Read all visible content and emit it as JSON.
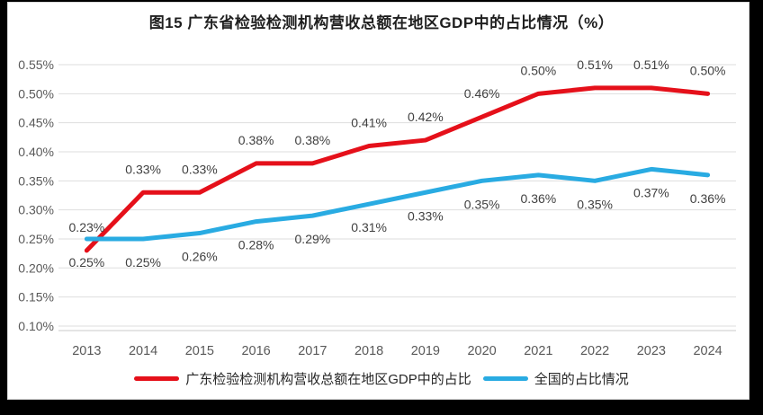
{
  "chart_data": {
    "type": "line",
    "title": "图15  广东省检验检测机构营收总额在地区GDP中的占比情况（%）",
    "categories": [
      "2013",
      "2014",
      "2015",
      "2016",
      "2017",
      "2018",
      "2019",
      "2020",
      "2021",
      "2022",
      "2023",
      "2024"
    ],
    "series": [
      {
        "name": "广东检验检测机构营收总额在地区GDP中的占比",
        "color": "#e5101a",
        "values": [
          0.23,
          0.33,
          0.33,
          0.38,
          0.38,
          0.41,
          0.42,
          0.46,
          0.5,
          0.51,
          0.51,
          0.5
        ],
        "labels": [
          "0.23%",
          "0.33%",
          "0.33%",
          "0.38%",
          "0.38%",
          "0.41%",
          "0.42%",
          "0.46%",
          "0.50%",
          "0.51%",
          "0.51%",
          "0.50%"
        ],
        "label_position": "above"
      },
      {
        "name": "全国的占比情况",
        "color": "#29abe2",
        "values": [
          0.25,
          0.25,
          0.26,
          0.28,
          0.29,
          0.31,
          0.33,
          0.35,
          0.36,
          0.35,
          0.37,
          0.36
        ],
        "labels": [
          "0.25%",
          "0.25%",
          "0.26%",
          "0.28%",
          "0.29%",
          "0.31%",
          "0.33%",
          "0.35%",
          "0.36%",
          "0.35%",
          "0.37%",
          "0.36%"
        ],
        "label_position": "below"
      }
    ],
    "y_axis": {
      "min": 0.1,
      "max": 0.55,
      "step": 0.05,
      "tick_labels": [
        "0.55%",
        "0.50%",
        "0.45%",
        "0.40%",
        "0.35%",
        "0.30%",
        "0.25%",
        "0.20%",
        "0.15%",
        "0.10%"
      ]
    },
    "grid": true,
    "legend_position": "bottom",
    "colors": {
      "grid_line": "#dedede",
      "axis_line": "#c8c8c8",
      "tick_text": "#595959",
      "data_label_text": "#404040",
      "title_text": "#1f1f1f",
      "panel_background": "#ffffff",
      "frame_background": "#000000"
    }
  }
}
